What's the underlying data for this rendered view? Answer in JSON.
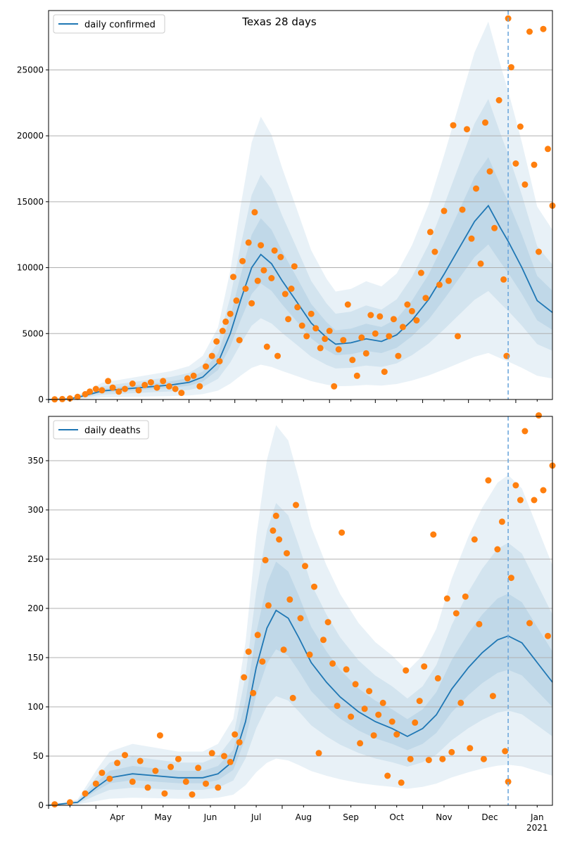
{
  "title": "Texas 28 days",
  "colors": {
    "model_line": "#1f77b4",
    "observed_points": "#ff7f0e",
    "band": "#1f77b4",
    "grid": "#b0b0b0",
    "marker_line": "#6fa8dc"
  },
  "chart_data": [
    {
      "type": "line",
      "panel": "top",
      "title": "Texas 28 days",
      "legend": "daily confirmed",
      "legend_position": "top-left",
      "grid": "horizontal",
      "ylim": [
        0,
        29500
      ],
      "yticks": [
        0,
        5000,
        10000,
        15000,
        20000,
        25000
      ],
      "x_range": [
        "2020-03-01",
        "2021-01-25"
      ],
      "forecast_marker_date": "2020-12-27",
      "series_model": [
        [
          "2020-03-01",
          0
        ],
        [
          "2020-03-15",
          50
        ],
        [
          "2020-03-25",
          300
        ],
        [
          "2020-04-05",
          650
        ],
        [
          "2020-04-20",
          800
        ],
        [
          "2020-05-05",
          950
        ],
        [
          "2020-05-20",
          1100
        ],
        [
          "2020-06-01",
          1300
        ],
        [
          "2020-06-10",
          1700
        ],
        [
          "2020-06-20",
          2800
        ],
        [
          "2020-06-28",
          5000
        ],
        [
          "2020-07-05",
          7600
        ],
        [
          "2020-07-12",
          10000
        ],
        [
          "2020-07-18",
          11000
        ],
        [
          "2020-07-25",
          10300
        ],
        [
          "2020-08-01",
          9000
        ],
        [
          "2020-08-10",
          7500
        ],
        [
          "2020-08-20",
          5800
        ],
        [
          "2020-08-30",
          4700
        ],
        [
          "2020-09-05",
          4200
        ],
        [
          "2020-09-15",
          4300
        ],
        [
          "2020-09-25",
          4600
        ],
        [
          "2020-10-05",
          4400
        ],
        [
          "2020-10-15",
          4900
        ],
        [
          "2020-10-25",
          6000
        ],
        [
          "2020-11-05",
          7600
        ],
        [
          "2020-11-15",
          9500
        ],
        [
          "2020-11-25",
          11500
        ],
        [
          "2020-12-05",
          13500
        ],
        [
          "2020-12-14",
          14700
        ],
        [
          "2020-12-22",
          13000
        ],
        [
          "2020-12-27",
          12000
        ],
        [
          "2021-01-05",
          10000
        ],
        [
          "2021-01-15",
          7500
        ],
        [
          "2021-01-25",
          6600
        ]
      ],
      "band_width_ratio": [
        0.25,
        0.55,
        0.95
      ],
      "observed_points": [
        [
          "2020-03-05",
          10
        ],
        [
          "2020-03-10",
          30
        ],
        [
          "2020-03-15",
          80
        ],
        [
          "2020-03-20",
          200
        ],
        [
          "2020-03-25",
          400
        ],
        [
          "2020-03-28",
          600
        ],
        [
          "2020-04-01",
          800
        ],
        [
          "2020-04-05",
          700
        ],
        [
          "2020-04-09",
          1400
        ],
        [
          "2020-04-12",
          900
        ],
        [
          "2020-04-16",
          600
        ],
        [
          "2020-04-20",
          800
        ],
        [
          "2020-04-25",
          1200
        ],
        [
          "2020-04-29",
          700
        ],
        [
          "2020-05-03",
          1100
        ],
        [
          "2020-05-07",
          1300
        ],
        [
          "2020-05-11",
          900
        ],
        [
          "2020-05-15",
          1400
        ],
        [
          "2020-05-19",
          1000
        ],
        [
          "2020-05-23",
          800
        ],
        [
          "2020-05-27",
          500
        ],
        [
          "2020-05-31",
          1600
        ],
        [
          "2020-06-04",
          1800
        ],
        [
          "2020-06-08",
          1000
        ],
        [
          "2020-06-12",
          2500
        ],
        [
          "2020-06-16",
          3300
        ],
        [
          "2020-06-19",
          4400
        ],
        [
          "2020-06-21",
          2900
        ],
        [
          "2020-06-23",
          5200
        ],
        [
          "2020-06-25",
          5900
        ],
        [
          "2020-06-28",
          6500
        ],
        [
          "2020-06-30",
          9300
        ],
        [
          "2020-07-02",
          7500
        ],
        [
          "2020-07-04",
          4500
        ],
        [
          "2020-07-06",
          10500
        ],
        [
          "2020-07-08",
          8400
        ],
        [
          "2020-07-10",
          11900
        ],
        [
          "2020-07-12",
          7300
        ],
        [
          "2020-07-14",
          14200
        ],
        [
          "2020-07-16",
          9000
        ],
        [
          "2020-07-18",
          11700
        ],
        [
          "2020-07-20",
          9800
        ],
        [
          "2020-07-22",
          4000
        ],
        [
          "2020-07-25",
          9200
        ],
        [
          "2020-07-27",
          11300
        ],
        [
          "2020-07-29",
          3300
        ],
        [
          "2020-07-31",
          10800
        ],
        [
          "2020-08-03",
          8000
        ],
        [
          "2020-08-05",
          6100
        ],
        [
          "2020-08-07",
          8400
        ],
        [
          "2020-08-09",
          10100
        ],
        [
          "2020-08-11",
          7000
        ],
        [
          "2020-08-14",
          5600
        ],
        [
          "2020-08-17",
          4800
        ],
        [
          "2020-08-20",
          6500
        ],
        [
          "2020-08-23",
          5400
        ],
        [
          "2020-08-26",
          3900
        ],
        [
          "2020-08-29",
          4600
        ],
        [
          "2020-09-01",
          5200
        ],
        [
          "2020-09-04",
          1000
        ],
        [
          "2020-09-07",
          3800
        ],
        [
          "2020-09-10",
          4500
        ],
        [
          "2020-09-13",
          7200
        ],
        [
          "2020-09-16",
          3000
        ],
        [
          "2020-09-19",
          1800
        ],
        [
          "2020-09-22",
          4700
        ],
        [
          "2020-09-25",
          3500
        ],
        [
          "2020-09-28",
          6400
        ],
        [
          "2020-10-01",
          5000
        ],
        [
          "2020-10-04",
          6300
        ],
        [
          "2020-10-07",
          2100
        ],
        [
          "2020-10-10",
          4800
        ],
        [
          "2020-10-13",
          6100
        ],
        [
          "2020-10-16",
          3300
        ],
        [
          "2020-10-19",
          5500
        ],
        [
          "2020-10-22",
          7200
        ],
        [
          "2020-10-25",
          6700
        ],
        [
          "2020-10-28",
          6000
        ],
        [
          "2020-10-31",
          9600
        ],
        [
          "2020-11-03",
          7700
        ],
        [
          "2020-11-06",
          12700
        ],
        [
          "2020-11-09",
          11200
        ],
        [
          "2020-11-12",
          8700
        ],
        [
          "2020-11-15",
          14300
        ],
        [
          "2020-11-18",
          9000
        ],
        [
          "2020-11-21",
          20800
        ],
        [
          "2020-11-24",
          4800
        ],
        [
          "2020-11-27",
          14400
        ],
        [
          "2020-11-30",
          20500
        ],
        [
          "2020-12-03",
          12200
        ],
        [
          "2020-12-06",
          16000
        ],
        [
          "2020-12-09",
          10300
        ],
        [
          "2020-12-12",
          21000
        ],
        [
          "2020-12-15",
          17300
        ],
        [
          "2020-12-18",
          13000
        ],
        [
          "2020-12-21",
          22700
        ],
        [
          "2020-12-24",
          9100
        ],
        [
          "2020-12-26",
          3300
        ],
        [
          "2020-12-27",
          28900
        ],
        [
          "2020-12-29",
          25200
        ],
        [
          "2021-01-01",
          17900
        ],
        [
          "2021-01-04",
          20700
        ],
        [
          "2021-01-07",
          16300
        ],
        [
          "2021-01-10",
          27900
        ],
        [
          "2021-01-13",
          17800
        ],
        [
          "2021-01-16",
          11200
        ],
        [
          "2021-01-19",
          28100
        ],
        [
          "2021-01-22",
          19000
        ],
        [
          "2021-01-25",
          14700
        ]
      ]
    },
    {
      "type": "line",
      "panel": "bottom",
      "legend": "daily deaths",
      "legend_position": "top-left",
      "grid": "horizontal",
      "ylim": [
        0,
        395
      ],
      "yticks": [
        0,
        50,
        100,
        150,
        200,
        250,
        300,
        350
      ],
      "x_range": [
        "2020-03-01",
        "2021-01-25"
      ],
      "forecast_marker_date": "2020-12-27",
      "xtick_labels": [
        "Apr",
        "May",
        "Jun",
        "Jul",
        "Aug",
        "Sep",
        "Oct",
        "Nov",
        "Dec",
        "Jan"
      ],
      "xtick_year_label": "2021",
      "series_model": [
        [
          "2020-03-01",
          0
        ],
        [
          "2020-03-20",
          3
        ],
        [
          "2020-04-01",
          18
        ],
        [
          "2020-04-10",
          28
        ],
        [
          "2020-04-25",
          32
        ],
        [
          "2020-05-10",
          30
        ],
        [
          "2020-05-25",
          28
        ],
        [
          "2020-06-10",
          28
        ],
        [
          "2020-06-20",
          32
        ],
        [
          "2020-06-30",
          45
        ],
        [
          "2020-07-08",
          85
        ],
        [
          "2020-07-15",
          140
        ],
        [
          "2020-07-22",
          180
        ],
        [
          "2020-07-28",
          198
        ],
        [
          "2020-08-05",
          190
        ],
        [
          "2020-08-12",
          170
        ],
        [
          "2020-08-20",
          145
        ],
        [
          "2020-08-30",
          125
        ],
        [
          "2020-09-08",
          110
        ],
        [
          "2020-09-20",
          95
        ],
        [
          "2020-10-01",
          85
        ],
        [
          "2020-10-12",
          78
        ],
        [
          "2020-10-22",
          70
        ],
        [
          "2020-11-01",
          78
        ],
        [
          "2020-11-10",
          92
        ],
        [
          "2020-11-20",
          118
        ],
        [
          "2020-12-01",
          140
        ],
        [
          "2020-12-10",
          155
        ],
        [
          "2020-12-20",
          168
        ],
        [
          "2020-12-27",
          172
        ],
        [
          "2021-01-05",
          165
        ],
        [
          "2021-01-15",
          145
        ],
        [
          "2021-01-25",
          125
        ]
      ],
      "band_width_ratio": [
        0.25,
        0.55,
        0.95
      ],
      "observed_points": [
        [
          "2020-03-05",
          1
        ],
        [
          "2020-03-15",
          3
        ],
        [
          "2020-03-25",
          12
        ],
        [
          "2020-04-01",
          22
        ],
        [
          "2020-04-05",
          33
        ],
        [
          "2020-04-10",
          27
        ],
        [
          "2020-04-15",
          43
        ],
        [
          "2020-04-20",
          51
        ],
        [
          "2020-04-25",
          24
        ],
        [
          "2020-04-30",
          45
        ],
        [
          "2020-05-05",
          18
        ],
        [
          "2020-05-10",
          35
        ],
        [
          "2020-05-13",
          71
        ],
        [
          "2020-05-16",
          12
        ],
        [
          "2020-05-20",
          39
        ],
        [
          "2020-05-25",
          47
        ],
        [
          "2020-05-30",
          24
        ],
        [
          "2020-06-03",
          11
        ],
        [
          "2020-06-07",
          38
        ],
        [
          "2020-06-12",
          22
        ],
        [
          "2020-06-16",
          53
        ],
        [
          "2020-06-20",
          18
        ],
        [
          "2020-06-24",
          50
        ],
        [
          "2020-06-28",
          44
        ],
        [
          "2020-07-01",
          72
        ],
        [
          "2020-07-04",
          64
        ],
        [
          "2020-07-07",
          130
        ],
        [
          "2020-07-10",
          156
        ],
        [
          "2020-07-13",
          114
        ],
        [
          "2020-07-16",
          173
        ],
        [
          "2020-07-19",
          146
        ],
        [
          "2020-07-21",
          249
        ],
        [
          "2020-07-23",
          203
        ],
        [
          "2020-07-26",
          279
        ],
        [
          "2020-07-28",
          294
        ],
        [
          "2020-07-30",
          270
        ],
        [
          "2020-08-02",
          158
        ],
        [
          "2020-08-04",
          256
        ],
        [
          "2020-08-06",
          209
        ],
        [
          "2020-08-08",
          109
        ],
        [
          "2020-08-10",
          305
        ],
        [
          "2020-08-13",
          190
        ],
        [
          "2020-08-16",
          243
        ],
        [
          "2020-08-19",
          153
        ],
        [
          "2020-08-22",
          222
        ],
        [
          "2020-08-25",
          53
        ],
        [
          "2020-08-28",
          168
        ],
        [
          "2020-08-31",
          186
        ],
        [
          "2020-09-03",
          144
        ],
        [
          "2020-09-06",
          101
        ],
        [
          "2020-09-09",
          277
        ],
        [
          "2020-09-12",
          138
        ],
        [
          "2020-09-15",
          90
        ],
        [
          "2020-09-18",
          123
        ],
        [
          "2020-09-21",
          63
        ],
        [
          "2020-09-24",
          98
        ],
        [
          "2020-09-27",
          116
        ],
        [
          "2020-09-30",
          71
        ],
        [
          "2020-10-03",
          92
        ],
        [
          "2020-10-06",
          104
        ],
        [
          "2020-10-09",
          30
        ],
        [
          "2020-10-12",
          85
        ],
        [
          "2020-10-15",
          72
        ],
        [
          "2020-10-18",
          23
        ],
        [
          "2020-10-21",
          137
        ],
        [
          "2020-10-24",
          47
        ],
        [
          "2020-10-27",
          84
        ],
        [
          "2020-10-30",
          106
        ],
        [
          "2020-11-02",
          141
        ],
        [
          "2020-11-05",
          46
        ],
        [
          "2020-11-08",
          275
        ],
        [
          "2020-11-11",
          129
        ],
        [
          "2020-11-14",
          47
        ],
        [
          "2020-11-17",
          210
        ],
        [
          "2020-11-20",
          54
        ],
        [
          "2020-11-23",
          195
        ],
        [
          "2020-11-26",
          104
        ],
        [
          "2020-11-29",
          212
        ],
        [
          "2020-12-02",
          58
        ],
        [
          "2020-12-05",
          270
        ],
        [
          "2020-12-08",
          184
        ],
        [
          "2020-12-11",
          47
        ],
        [
          "2020-12-14",
          330
        ],
        [
          "2020-12-17",
          111
        ],
        [
          "2020-12-20",
          260
        ],
        [
          "2020-12-23",
          288
        ],
        [
          "2020-12-25",
          55
        ],
        [
          "2020-12-27",
          24
        ],
        [
          "2020-12-29",
          231
        ],
        [
          "2021-01-01",
          325
        ],
        [
          "2021-01-04",
          310
        ],
        [
          "2021-01-07",
          380
        ],
        [
          "2021-01-10",
          185
        ],
        [
          "2021-01-13",
          310
        ],
        [
          "2021-01-16",
          396
        ],
        [
          "2021-01-19",
          320
        ],
        [
          "2021-01-22",
          172
        ],
        [
          "2021-01-25",
          345
        ]
      ]
    }
  ]
}
